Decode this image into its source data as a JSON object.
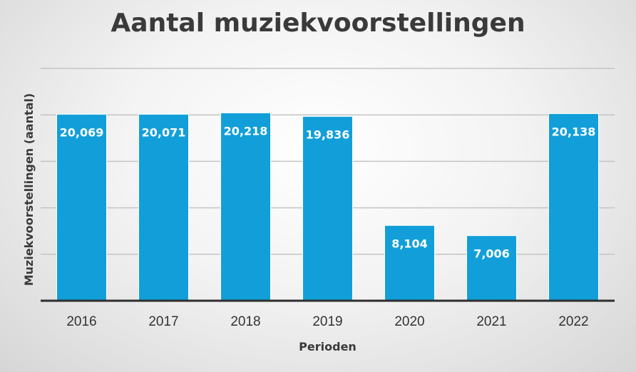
{
  "chart_data": {
    "type": "bar",
    "title": "Aantal muziekvoorstellingen",
    "xlabel": "Perioden",
    "ylabel": "Muziekvoorstellingen (aantal)",
    "categories": [
      "2016",
      "2017",
      "2018",
      "2019",
      "2020",
      "2021",
      "2022"
    ],
    "values": [
      20069,
      20071,
      20218,
      19836,
      8104,
      7006,
      20138
    ],
    "data_labels": [
      "20,069",
      "20,071",
      "20,218",
      "19,836",
      "8,104",
      "7,006",
      "20,138"
    ],
    "ylim": [
      0,
      25000
    ],
    "grid": true,
    "legend": "none",
    "bar_color": "#129fd9"
  }
}
